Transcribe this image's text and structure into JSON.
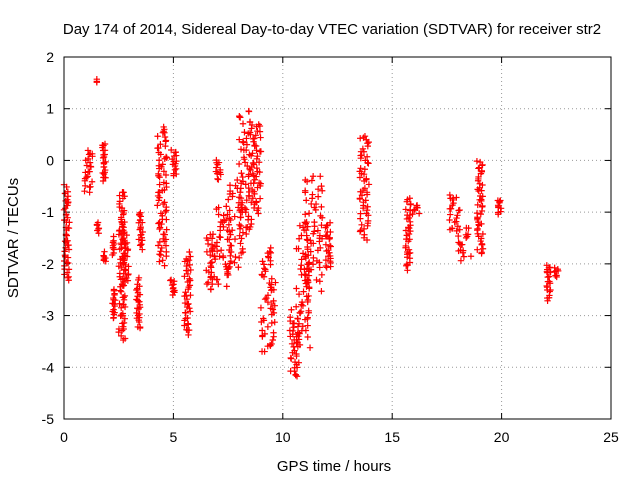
{
  "chart_data": {
    "type": "scatter",
    "title": "Day 174 of 2014, Sidereal Day-to-day VTEC variation (SDTVAR) for receiver str2",
    "xlabel": "GPS time / hours",
    "ylabel": "SDTVAR / TECUs",
    "xlim": [
      0,
      25
    ],
    "ylim": [
      -5,
      2
    ],
    "xticks": [
      "0",
      "5",
      "10",
      "15",
      "20",
      "25"
    ],
    "yticks": [
      "-5",
      "-4",
      "-3",
      "-2",
      "-1",
      "0",
      "1",
      "2"
    ],
    "grid": true,
    "marker": "+",
    "color": "#ff0000",
    "clusters": [
      {
        "x0": 0.0,
        "x1": 0.25,
        "y": [
          -0.5,
          -2.3
        ]
      },
      {
        "x0": 0.9,
        "x1": 1.3,
        "y": [
          0.2,
          -0.6
        ]
      },
      {
        "x0": 1.5,
        "x1": 1.5,
        "y": [
          1.55,
          1.55
        ]
      },
      {
        "x0": 1.5,
        "x1": 1.6,
        "y": [
          -1.2,
          -1.4
        ]
      },
      {
        "x0": 1.75,
        "x1": 1.9,
        "y": [
          0.35,
          -0.4
        ]
      },
      {
        "x0": 1.8,
        "x1": 1.95,
        "y": [
          -1.8,
          -1.95
        ]
      },
      {
        "x0": 2.2,
        "x1": 2.3,
        "y": [
          -1.5,
          -1.8
        ]
      },
      {
        "x0": 2.2,
        "x1": 2.35,
        "y": [
          -2.5,
          -3.05
        ]
      },
      {
        "x0": 2.5,
        "x1": 2.8,
        "y": [
          -0.6,
          -3.45
        ]
      },
      {
        "x0": 2.65,
        "x1": 2.95,
        "y": [
          -1.3,
          -2.4
        ]
      },
      {
        "x0": 3.3,
        "x1": 3.5,
        "y": [
          -2.3,
          -3.25
        ]
      },
      {
        "x0": 3.4,
        "x1": 3.6,
        "y": [
          -1.0,
          -1.7
        ]
      },
      {
        "x0": 4.25,
        "x1": 4.7,
        "y": [
          0.65,
          -2.0
        ]
      },
      {
        "x0": 4.9,
        "x1": 5.15,
        "y": [
          0.2,
          -0.3
        ]
      },
      {
        "x0": 4.85,
        "x1": 5.05,
        "y": [
          -2.3,
          -2.6
        ]
      },
      {
        "x0": 5.5,
        "x1": 5.8,
        "y": [
          -1.8,
          -3.35
        ]
      },
      {
        "x0": 6.5,
        "x1": 6.9,
        "y": [
          -1.4,
          -2.5
        ]
      },
      {
        "x0": 6.9,
        "x1": 7.2,
        "y": [
          0.0,
          -0.35
        ]
      },
      {
        "x0": 6.9,
        "x1": 7.6,
        "y": [
          -0.9,
          -2.4
        ]
      },
      {
        "x0": 7.5,
        "x1": 8.2,
        "y": [
          -0.4,
          -2.1
        ]
      },
      {
        "x0": 8.0,
        "x1": 8.6,
        "y": [
          0.95,
          -1.4
        ]
      },
      {
        "x0": 8.6,
        "x1": 9.0,
        "y": [
          0.7,
          -1.0
        ]
      },
      {
        "x0": 9.0,
        "x1": 9.7,
        "y": [
          -1.7,
          -3.7
        ]
      },
      {
        "x0": 10.3,
        "x1": 10.8,
        "y": [
          -2.9,
          -4.2
        ]
      },
      {
        "x0": 10.6,
        "x1": 11.3,
        "y": [
          -1.2,
          -3.6
        ]
      },
      {
        "x0": 11.0,
        "x1": 11.8,
        "y": [
          -0.3,
          -2.5
        ]
      },
      {
        "x0": 11.9,
        "x1": 12.2,
        "y": [
          -1.2,
          -2.1
        ]
      },
      {
        "x0": 13.5,
        "x1": 13.95,
        "y": [
          0.5,
          -1.5
        ]
      },
      {
        "x0": 15.6,
        "x1": 15.85,
        "y": [
          -0.75,
          -2.1
        ]
      },
      {
        "x0": 15.9,
        "x1": 16.3,
        "y": [
          -0.85,
          -1.05
        ]
      },
      {
        "x0": 17.6,
        "x1": 18.1,
        "y": [
          -0.65,
          -1.4
        ]
      },
      {
        "x0": 18.0,
        "x1": 18.6,
        "y": [
          -1.3,
          -1.9
        ]
      },
      {
        "x0": 18.85,
        "x1": 19.15,
        "y": [
          0.0,
          -1.8
        ]
      },
      {
        "x0": 19.8,
        "x1": 20.05,
        "y": [
          -0.75,
          -1.05
        ]
      },
      {
        "x0": 22.05,
        "x1": 22.25,
        "y": [
          -2.0,
          -2.7
        ]
      },
      {
        "x0": 22.4,
        "x1": 22.65,
        "y": [
          -2.05,
          -2.25
        ]
      }
    ]
  }
}
